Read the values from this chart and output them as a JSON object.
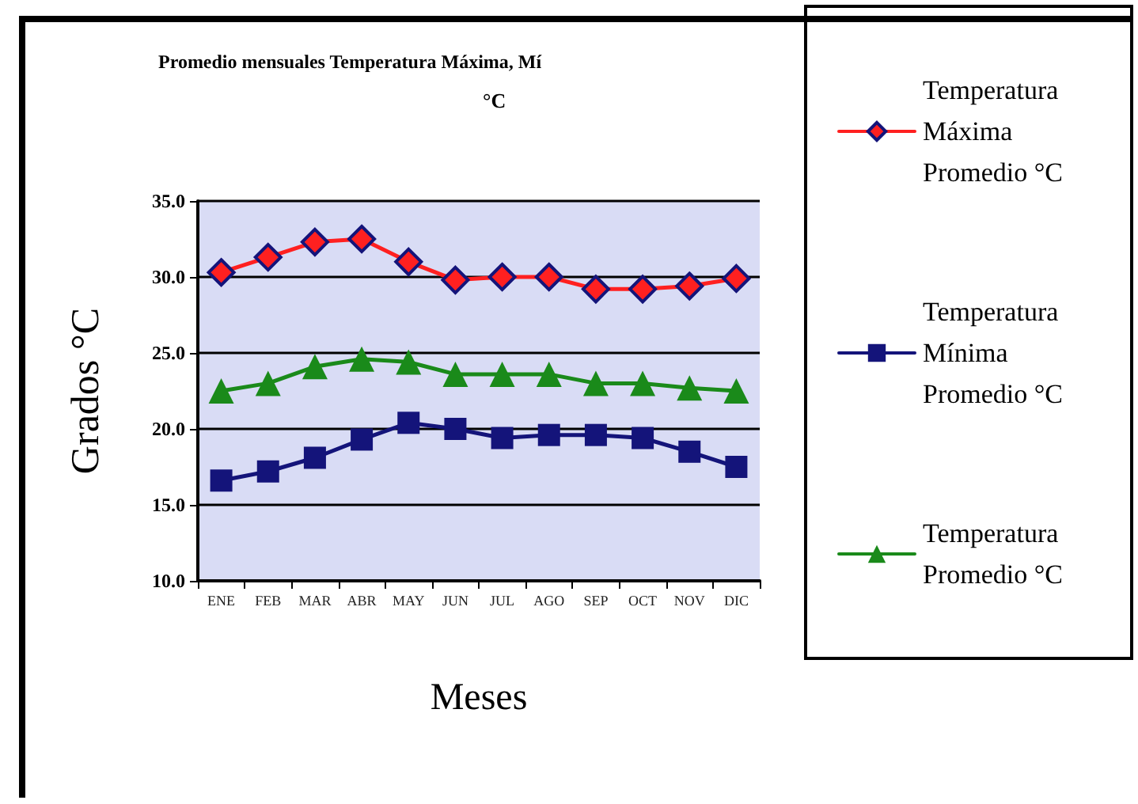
{
  "chart_data": {
    "type": "line",
    "title": "Promedio mensuales Temperatura Máxima, Mí",
    "subtitle": "°C",
    "xlabel": "Meses",
    "ylabel": "Grados °C",
    "categories": [
      "ENE",
      "FEB",
      "MAR",
      "ABR",
      "MAY",
      "JUN",
      "JUL",
      "AGO",
      "SEP",
      "OCT",
      "NOV",
      "DIC"
    ],
    "series": [
      {
        "name": "Temperatura Máxima Promedio °C",
        "color": "#ff2020",
        "marker": "diamond",
        "values": [
          30.3,
          31.3,
          32.3,
          32.5,
          31.0,
          29.8,
          30.0,
          30.0,
          29.2,
          29.2,
          29.4,
          29.9
        ]
      },
      {
        "name": "Temperatura Mínima Promedio °C",
        "color": "#14147a",
        "marker": "square",
        "values": [
          16.6,
          17.2,
          18.1,
          19.3,
          20.4,
          20.0,
          19.4,
          19.6,
          19.6,
          19.4,
          18.5,
          17.5
        ]
      },
      {
        "name": "Temperatura Promedio °C",
        "color": "#1a8a1a",
        "marker": "triangle",
        "values": [
          22.5,
          23.0,
          24.1,
          24.6,
          24.4,
          23.6,
          23.6,
          23.6,
          23.0,
          23.0,
          22.7,
          22.5
        ]
      }
    ],
    "ylim": [
      10,
      35
    ],
    "yticks": [
      {
        "value": 10,
        "label": "10.0"
      },
      {
        "value": 15,
        "label": "15.0"
      },
      {
        "value": 20,
        "label": "20.0"
      },
      {
        "value": 25,
        "label": "25.0"
      },
      {
        "value": 30,
        "label": "30.0"
      },
      {
        "value": 35,
        "label": "35.0"
      }
    ],
    "grid": "y",
    "legend": "right",
    "line_style": "solid"
  }
}
